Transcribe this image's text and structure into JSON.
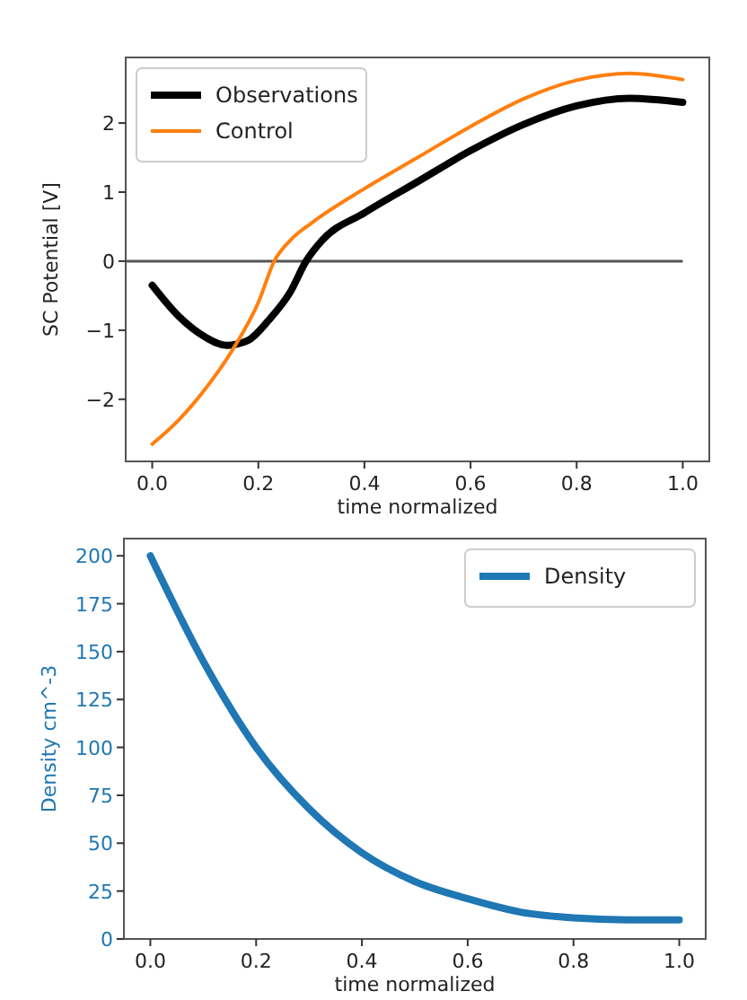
{
  "chart_data": [
    {
      "type": "line",
      "xlabel": "time normalized",
      "ylabel": "SC Potential [V]",
      "xlim": [
        -0.05,
        1.05
      ],
      "xticks": [
        {
          "value": 0,
          "label": "0.0"
        },
        {
          "value": 0.2,
          "label": "0.2"
        },
        {
          "value": 0.4,
          "label": "0.4"
        },
        {
          "value": 0.6,
          "label": "0.6"
        },
        {
          "value": 0.8,
          "label": "0.8"
        },
        {
          "value": 1,
          "label": "1.0"
        }
      ],
      "ylim": [
        -2.9,
        2.95
      ],
      "yticks": [
        {
          "value": -2,
          "label": "−2"
        },
        {
          "value": -1,
          "label": "−1"
        },
        0,
        1,
        2
      ],
      "legend": "top left",
      "ref_lines": [
        {
          "axis": "y",
          "value": 0,
          "color": "#555555"
        }
      ],
      "series": [
        {
          "name": "Observations",
          "color": "#000000",
          "x": [
            0,
            0.05,
            0.1,
            0.14,
            0.18,
            0.22,
            0.26,
            0.29,
            0.32,
            0.4,
            0.5,
            0.6,
            0.7,
            0.8,
            0.9,
            1.0
          ],
          "values": [
            -0.35,
            -0.8,
            -1.1,
            -1.22,
            -1.15,
            -0.85,
            -0.45,
            0,
            0.3,
            0.7,
            1.15,
            1.6,
            1.98,
            2.25,
            2.36,
            2.3
          ]
        },
        {
          "name": "Control",
          "color": "#ff7f0e",
          "x": [
            0,
            0.05,
            0.1,
            0.15,
            0.2,
            0.23,
            0.26,
            0.3,
            0.4,
            0.5,
            0.6,
            0.7,
            0.8,
            0.9,
            1.0
          ],
          "values": [
            -2.65,
            -2.3,
            -1.85,
            -1.3,
            -0.6,
            0,
            0.3,
            0.55,
            1.05,
            1.5,
            1.95,
            2.35,
            2.62,
            2.72,
            2.63
          ]
        }
      ]
    },
    {
      "type": "line",
      "xlabel": "time normalized",
      "ylabel": "Density cm^-3",
      "xlim": [
        -0.05,
        1.05
      ],
      "xticks": [
        {
          "value": 0,
          "label": "0.0"
        },
        {
          "value": 0.2,
          "label": "0.2"
        },
        {
          "value": 0.4,
          "label": "0.4"
        },
        {
          "value": 0.6,
          "label": "0.6"
        },
        {
          "value": 0.8,
          "label": "0.8"
        },
        {
          "value": 1,
          "label": "1.0"
        }
      ],
      "ylim": [
        0,
        209
      ],
      "yticks": [
        0,
        25,
        50,
        75,
        100,
        125,
        150,
        175,
        200
      ],
      "legend": "top right",
      "series": [
        {
          "name": "Density",
          "color": "#1f77b4",
          "x": [
            0,
            0.1,
            0.2,
            0.3,
            0.4,
            0.5,
            0.6,
            0.7,
            0.8,
            0.9,
            1.0
          ],
          "values": [
            200,
            145,
            100,
            68,
            45,
            30,
            21,
            14,
            11,
            10,
            10
          ]
        }
      ]
    }
  ]
}
